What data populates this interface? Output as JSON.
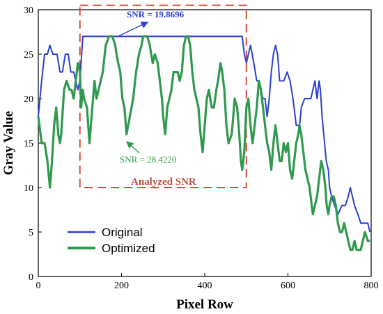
{
  "chart_data": {
    "type": "line",
    "title": "",
    "xlabel": "Pixel Row",
    "ylabel": "Gray Value",
    "xlim": [
      0,
      800
    ],
    "ylim": [
      0,
      30
    ],
    "x_ticks": [
      0,
      200,
      400,
      600,
      800
    ],
    "y_ticks": [
      0,
      5,
      10,
      15,
      20,
      25,
      30
    ],
    "grid": false,
    "legend_position": "bottom-left",
    "series": [
      {
        "name": "Original",
        "color": "#2b3fd1",
        "points": [
          [
            0,
            18
          ],
          [
            8,
            22
          ],
          [
            15,
            25
          ],
          [
            22,
            25
          ],
          [
            28,
            26
          ],
          [
            35,
            25
          ],
          [
            45,
            25
          ],
          [
            52,
            23
          ],
          [
            58,
            23
          ],
          [
            65,
            25
          ],
          [
            72,
            25
          ],
          [
            78,
            23
          ],
          [
            85,
            23
          ],
          [
            90,
            22
          ],
          [
            95,
            21
          ],
          [
            100,
            22
          ],
          [
            107,
            27
          ],
          [
            200,
            27
          ],
          [
            250,
            27
          ],
          [
            300,
            27
          ],
          [
            350,
            27
          ],
          [
            400,
            27
          ],
          [
            450,
            27
          ],
          [
            490,
            27
          ],
          [
            495,
            25
          ],
          [
            500,
            24
          ],
          [
            505,
            25
          ],
          [
            510,
            26
          ],
          [
            518,
            24
          ],
          [
            525,
            22
          ],
          [
            530,
            22
          ],
          [
            540,
            20
          ],
          [
            545,
            20
          ],
          [
            550,
            18
          ],
          [
            555,
            20
          ],
          [
            560,
            23
          ],
          [
            565,
            25
          ],
          [
            570,
            26
          ],
          [
            575,
            25
          ],
          [
            580,
            22
          ],
          [
            590,
            22
          ],
          [
            598,
            23
          ],
          [
            605,
            22
          ],
          [
            612,
            20
          ],
          [
            620,
            17
          ],
          [
            628,
            17
          ],
          [
            632,
            19
          ],
          [
            640,
            20
          ],
          [
            648,
            20
          ],
          [
            655,
            20
          ],
          [
            660,
            21
          ],
          [
            665,
            22
          ],
          [
            670,
            20
          ],
          [
            675,
            22
          ],
          [
            678,
            21
          ],
          [
            682,
            18
          ],
          [
            688,
            15
          ],
          [
            692,
            13
          ],
          [
            697,
            12
          ],
          [
            700,
            10
          ],
          [
            705,
            9
          ],
          [
            712,
            8
          ],
          [
            720,
            7
          ],
          [
            730,
            8
          ],
          [
            738,
            8
          ],
          [
            745,
            9
          ],
          [
            750,
            10
          ],
          [
            755,
            9
          ],
          [
            760,
            8
          ],
          [
            768,
            7
          ],
          [
            775,
            6
          ],
          [
            785,
            6
          ],
          [
            792,
            6
          ],
          [
            797,
            5
          ]
        ]
      },
      {
        "name": "Optimized",
        "color": "#2f9a4e",
        "points": [
          [
            0,
            18
          ],
          [
            8,
            15
          ],
          [
            15,
            15
          ],
          [
            22,
            13
          ],
          [
            28,
            10
          ],
          [
            33,
            13
          ],
          [
            38,
            17
          ],
          [
            43,
            19
          ],
          [
            48,
            16
          ],
          [
            52,
            15
          ],
          [
            55,
            16
          ],
          [
            62,
            21
          ],
          [
            68,
            22
          ],
          [
            75,
            21
          ],
          [
            80,
            21
          ],
          [
            85,
            20
          ],
          [
            90,
            22
          ],
          [
            95,
            24
          ],
          [
            100,
            23
          ],
          [
            103,
            19
          ],
          [
            107,
            21
          ],
          [
            110,
            20
          ],
          [
            117,
            19
          ],
          [
            123,
            15
          ],
          [
            128,
            18
          ],
          [
            135,
            22
          ],
          [
            140,
            20
          ],
          [
            145,
            21
          ],
          [
            150,
            22
          ],
          [
            155,
            23
          ],
          [
            162,
            26
          ],
          [
            170,
            27
          ],
          [
            178,
            27
          ],
          [
            185,
            26
          ],
          [
            188,
            25
          ],
          [
            192,
            24
          ],
          [
            197,
            23
          ],
          [
            202,
            20
          ],
          [
            207,
            19
          ],
          [
            212,
            16
          ],
          [
            220,
            18
          ],
          [
            228,
            20
          ],
          [
            235,
            23
          ],
          [
            242,
            25
          ],
          [
            248,
            26
          ],
          [
            252,
            27
          ],
          [
            262,
            27
          ],
          [
            268,
            26
          ],
          [
            275,
            24
          ],
          [
            280,
            25
          ],
          [
            287,
            24
          ],
          [
            292,
            22
          ],
          [
            297,
            20
          ],
          [
            300,
            18
          ],
          [
            305,
            16
          ],
          [
            310,
            19
          ],
          [
            315,
            20
          ],
          [
            320,
            21
          ],
          [
            325,
            23
          ],
          [
            330,
            23
          ],
          [
            335,
            23
          ],
          [
            340,
            22
          ],
          [
            345,
            23
          ],
          [
            350,
            26
          ],
          [
            355,
            27
          ],
          [
            360,
            27
          ],
          [
            365,
            26
          ],
          [
            370,
            23
          ],
          [
            375,
            21
          ],
          [
            380,
            20
          ],
          [
            385,
            19
          ],
          [
            390,
            16
          ],
          [
            395,
            14
          ],
          [
            400,
            17
          ],
          [
            405,
            20
          ],
          [
            410,
            21
          ],
          [
            413,
            20
          ],
          [
            417,
            19
          ],
          [
            422,
            19
          ],
          [
            428,
            21
          ],
          [
            432,
            22
          ],
          [
            438,
            24
          ],
          [
            442,
            23
          ],
          [
            447,
            21
          ],
          [
            452,
            17
          ],
          [
            457,
            15
          ],
          [
            465,
            16
          ],
          [
            472,
            20
          ],
          [
            478,
            19
          ],
          [
            483,
            16
          ],
          [
            487,
            13
          ],
          [
            490,
            12
          ],
          [
            495,
            14
          ],
          [
            500,
            19
          ],
          [
            505,
            20
          ],
          [
            510,
            17
          ],
          [
            515,
            15
          ],
          [
            520,
            17
          ],
          [
            525,
            19
          ],
          [
            530,
            22
          ],
          [
            535,
            21
          ],
          [
            540,
            19
          ],
          [
            545,
            17
          ],
          [
            550,
            15
          ],
          [
            555,
            14
          ],
          [
            560,
            12
          ],
          [
            565,
            15
          ],
          [
            570,
            17
          ],
          [
            575,
            15
          ],
          [
            580,
            13
          ],
          [
            585,
            13
          ],
          [
            590,
            15
          ],
          [
            595,
            14
          ],
          [
            600,
            15
          ],
          [
            605,
            12
          ],
          [
            610,
            11
          ],
          [
            615,
            13
          ],
          [
            620,
            15
          ],
          [
            625,
            16
          ],
          [
            628,
            17
          ],
          [
            632,
            16
          ],
          [
            637,
            14
          ],
          [
            642,
            12
          ],
          [
            647,
            11
          ],
          [
            652,
            10
          ],
          [
            657,
            8
          ],
          [
            660,
            7
          ],
          [
            665,
            8
          ],
          [
            670,
            9
          ],
          [
            675,
            11
          ],
          [
            680,
            13
          ],
          [
            685,
            12
          ],
          [
            690,
            10
          ],
          [
            693,
            8
          ],
          [
            697,
            7
          ],
          [
            700,
            8
          ],
          [
            705,
            9
          ],
          [
            710,
            9
          ],
          [
            715,
            8
          ],
          [
            720,
            6
          ],
          [
            725,
            5
          ],
          [
            730,
            5
          ],
          [
            735,
            6
          ],
          [
            740,
            5
          ],
          [
            745,
            4
          ],
          [
            750,
            3
          ],
          [
            755,
            3
          ],
          [
            760,
            4
          ],
          [
            765,
            3
          ],
          [
            770,
            3
          ],
          [
            775,
            3
          ],
          [
            780,
            4
          ],
          [
            785,
            5
          ],
          [
            792,
            4
          ],
          [
            797,
            4
          ]
        ]
      }
    ],
    "annotations": [
      {
        "text": "SNR = 19.8696",
        "color": "#2b3fd1"
      },
      {
        "text": "SNR = 28.4220",
        "color": "#2f9a4e"
      },
      {
        "text": "Analyzed SNR",
        "color": "#b5553d"
      }
    ],
    "analyzed_region": {
      "x_start": 100,
      "x_end": 500,
      "y_start": 10,
      "y_end": 30.5,
      "color": "#d94a3a"
    }
  }
}
